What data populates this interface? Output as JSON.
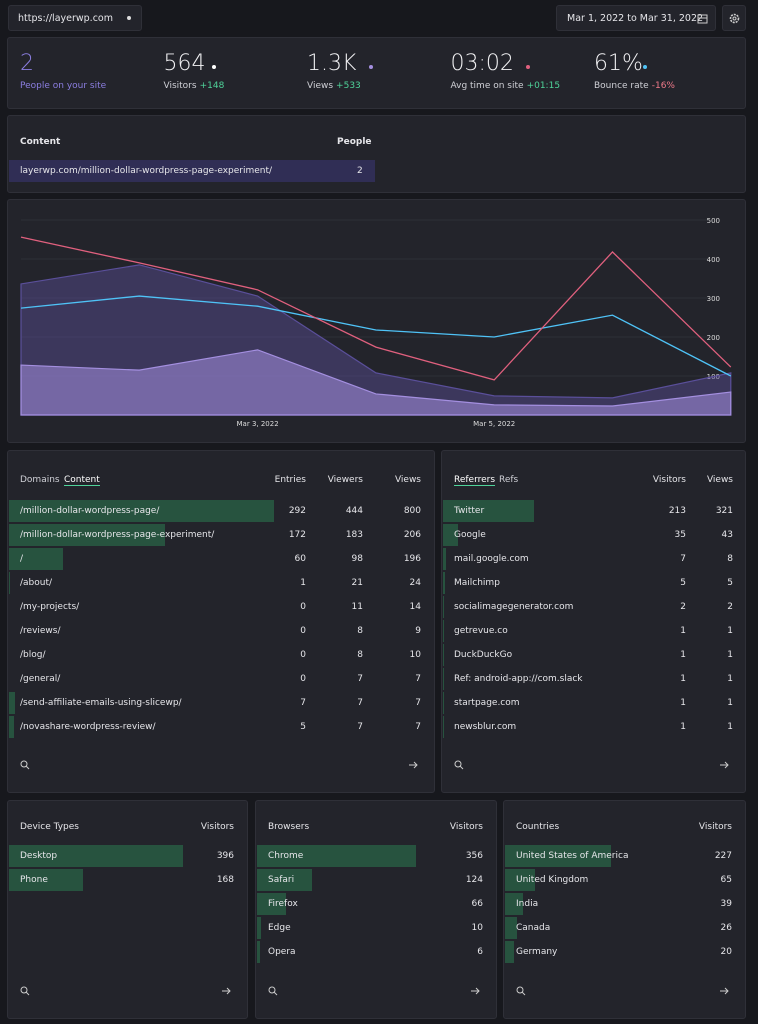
{
  "url": "https://layerwp.com",
  "date_range": "Mar 1, 2022 to Mar 31, 2022",
  "stats": [
    {
      "value": "2",
      "label": "People on your site"
    },
    {
      "value": "564",
      "label": "Visitors",
      "change": "+148",
      "color": "#ffffff"
    },
    {
      "value": "1.3K",
      "label": "Views",
      "change": "+533",
      "color": "#a48fe0"
    },
    {
      "value": "03:02",
      "label": "Avg time on site",
      "change": "+01:15",
      "color": "#e0607e"
    },
    {
      "value": "61%",
      "label": "Bounce rate",
      "change": "-16%",
      "color": "#4fc3f7"
    }
  ],
  "live": {
    "headers": [
      "Content",
      "People"
    ],
    "rows": [
      [
        "layerwp.com/million-dollar-wordpress-page-experiment/",
        2
      ]
    ]
  },
  "chart_data": {
    "type": "line",
    "categories": [
      null,
      null,
      "Mar 3, 2022",
      null,
      "Mar 5, 2022",
      null,
      null
    ],
    "ylim": [
      0,
      500
    ],
    "yticks": [
      100,
      200,
      300,
      400,
      500
    ],
    "grid": true,
    "series": [
      {
        "color": "#5a4f9a",
        "area": true,
        "values": [
          336,
          385,
          305,
          108,
          49,
          44,
          108
        ]
      },
      {
        "color": "#a48fe0",
        "area": true,
        "values": [
          128,
          115,
          167,
          54,
          26,
          23,
          59
        ]
      },
      {
        "color": "#4fc3f7",
        "area": false,
        "values": [
          274,
          305,
          279,
          218,
          200,
          256,
          100
        ]
      },
      {
        "color": "#e0607e",
        "area": false,
        "values": [
          456,
          390,
          321,
          174,
          90,
          418,
          123
        ]
      }
    ]
  },
  "pages": {
    "tabs": [
      "Domains",
      "Content"
    ],
    "columns": [
      "Entries",
      "Viewers",
      "Views"
    ],
    "rows": [
      {
        "label": "/million-dollar-wordpress-page/",
        "values": [
          292,
          444,
          800
        ]
      },
      {
        "label": "/million-dollar-wordpress-page-experiment/",
        "values": [
          172,
          183,
          206
        ]
      },
      {
        "label": "/",
        "values": [
          60,
          98,
          196
        ]
      },
      {
        "label": "/about/",
        "values": [
          1,
          21,
          24
        ]
      },
      {
        "label": "/my-projects/",
        "values": [
          0,
          11,
          14
        ]
      },
      {
        "label": "/reviews/",
        "values": [
          0,
          8,
          9
        ]
      },
      {
        "label": "/blog/",
        "values": [
          0,
          8,
          10
        ]
      },
      {
        "label": "/general/",
        "values": [
          0,
          7,
          7
        ]
      },
      {
        "label": "/send-affiliate-emails-using-slicewp/",
        "values": [
          7,
          7,
          7
        ]
      },
      {
        "label": "/novashare-wordpress-review/",
        "values": [
          5,
          7,
          7
        ]
      }
    ]
  },
  "referrers": {
    "tabs": [
      "Referrers",
      "Refs"
    ],
    "columns": [
      "Visitors",
      "Views"
    ],
    "rows": [
      {
        "label": "Twitter",
        "values": [
          213,
          321
        ]
      },
      {
        "label": "Google",
        "values": [
          35,
          43
        ]
      },
      {
        "label": "mail.google.com",
        "values": [
          7,
          8
        ]
      },
      {
        "label": "Mailchimp",
        "values": [
          5,
          5
        ]
      },
      {
        "label": "socialimagegenerator.com",
        "values": [
          2,
          2
        ]
      },
      {
        "label": "getrevue.co",
        "values": [
          1,
          1
        ]
      },
      {
        "label": "DuckDuckGo",
        "values": [
          1,
          1
        ]
      },
      {
        "label": "Ref: android-app://com.slack",
        "values": [
          1,
          1
        ]
      },
      {
        "label": "startpage.com",
        "values": [
          1,
          1
        ]
      },
      {
        "label": "newsblur.com",
        "values": [
          1,
          1
        ]
      }
    ]
  },
  "devices": {
    "title": "Device Types",
    "columns": [
      "Visitors"
    ],
    "rows": [
      {
        "label": "Desktop",
        "values": [
          396
        ]
      },
      {
        "label": "Phone",
        "values": [
          168
        ]
      }
    ]
  },
  "browsers": {
    "title": "Browsers",
    "columns": [
      "Visitors"
    ],
    "rows": [
      {
        "label": "Chrome",
        "values": [
          356
        ]
      },
      {
        "label": "Safari",
        "values": [
          124
        ]
      },
      {
        "label": "Firefox",
        "values": [
          66
        ]
      },
      {
        "label": "Edge",
        "values": [
          10
        ]
      },
      {
        "label": "Opera",
        "values": [
          6
        ]
      }
    ]
  },
  "countries": {
    "title": "Countries",
    "columns": [
      "Visitors"
    ],
    "rows": [
      {
        "label": "United States of America",
        "values": [
          227
        ]
      },
      {
        "label": "United Kingdom",
        "values": [
          65
        ]
      },
      {
        "label": "India",
        "values": [
          39
        ]
      },
      {
        "label": "Canada",
        "values": [
          26
        ]
      },
      {
        "label": "Germany",
        "values": [
          20
        ]
      }
    ]
  }
}
